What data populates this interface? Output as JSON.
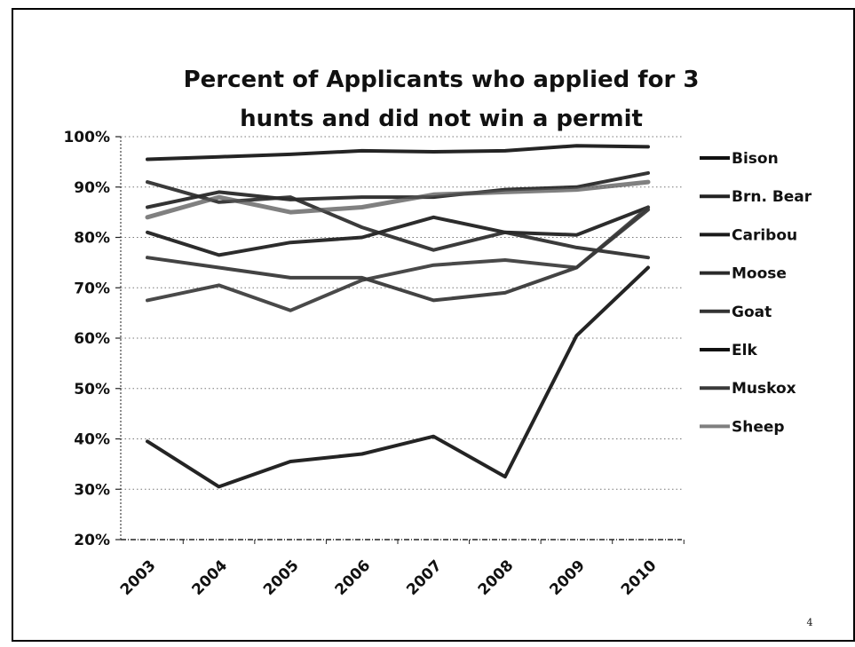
{
  "page": {
    "page_number": "4"
  },
  "chart_data": {
    "type": "line",
    "title_lines": [
      "Percent of Applicants who applied for 3",
      "hunts and did not win a permit"
    ],
    "xlabel": "",
    "ylabel": "",
    "categories": [
      "2003",
      "2004",
      "2005",
      "2006",
      "2007",
      "2008",
      "2009",
      "2010"
    ],
    "ylim": [
      20,
      100
    ],
    "y_ticks": [
      20,
      30,
      40,
      50,
      60,
      70,
      80,
      90,
      100
    ],
    "y_tick_labels": [
      "20%",
      "30%",
      "40%",
      "50%",
      "60%",
      "70%",
      "80%",
      "90%",
      "100%"
    ],
    "grid": true,
    "legend_position": "right",
    "series": [
      {
        "name": "Bison",
        "values": [
          95.5,
          96,
          96.5,
          97.2,
          97,
          97.2,
          98.2,
          98
        ],
        "color": "#111111"
      },
      {
        "name": "Brn. Bear",
        "values": [
          86,
          89,
          87.5,
          88,
          88,
          89.5,
          90,
          92.8
        ],
        "color": "#222222"
      },
      {
        "name": "Caribou",
        "values": [
          81,
          76.5,
          79,
          80,
          84,
          81,
          80.5,
          86
        ],
        "color": "#1a1a1a"
      },
      {
        "name": "Moose",
        "values": [
          91,
          87,
          88,
          82,
          77.5,
          81,
          78,
          76
        ],
        "color": "#2a2a2a"
      },
      {
        "name": "Goat",
        "values": [
          76,
          74,
          72,
          72,
          67.5,
          69,
          74,
          85.5
        ],
        "color": "#333333"
      },
      {
        "name": "Elk",
        "values": [
          39.5,
          30.5,
          35.5,
          37,
          40.5,
          32.5,
          60.5,
          74
        ],
        "color": "#111111"
      },
      {
        "name": "Muskox",
        "values": [
          67.5,
          70.5,
          65.5,
          71.5,
          74.5,
          75.5,
          74,
          86
        ],
        "color": "#3a3a3a"
      },
      {
        "name": "Sheep",
        "values": [
          84,
          88,
          85,
          86,
          88.5,
          89,
          89.5,
          91
        ],
        "color": "#555555"
      }
    ],
    "legend_labels": [
      "Bison",
      "Brn. Bear",
      "Caribou",
      "Moose",
      "Goat",
      "Elk",
      "Muskox",
      "Sheep"
    ]
  }
}
